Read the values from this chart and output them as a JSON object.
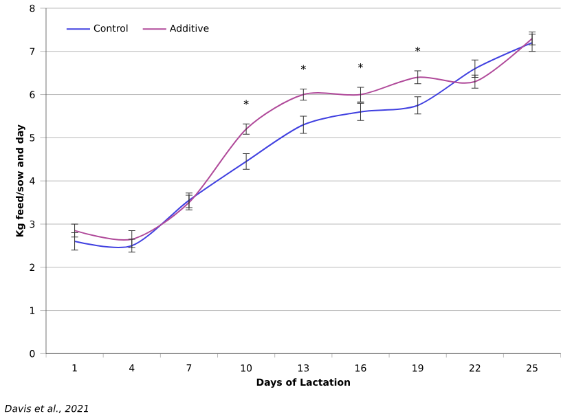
{
  "chart_data": {
    "type": "line",
    "xlabel": "Days of Lactation",
    "ylabel": "Kg feed/sow and day",
    "categories": [
      "1",
      "4",
      "7",
      "10",
      "13",
      "16",
      "19",
      "22",
      "25"
    ],
    "series": [
      {
        "name": "Control",
        "color": "#4040e0",
        "values": [
          2.6,
          2.5,
          3.55,
          4.45,
          5.3,
          5.6,
          5.75,
          6.6,
          7.2
        ],
        "errors": [
          0.2,
          0.15,
          0.17,
          0.18,
          0.2,
          0.2,
          0.2,
          0.2,
          0.2
        ]
      },
      {
        "name": "Additive",
        "color": "#b04a9a",
        "values": [
          2.85,
          2.65,
          3.5,
          5.2,
          6.0,
          6.0,
          6.4,
          6.3,
          7.3
        ],
        "errors": [
          0.15,
          0.2,
          0.17,
          0.12,
          0.13,
          0.17,
          0.15,
          0.15,
          0.15
        ]
      }
    ],
    "ylim": [
      0,
      8
    ],
    "yticks": [
      0,
      1,
      2,
      3,
      4,
      5,
      6,
      7,
      8
    ],
    "grid": "y",
    "legend": "top left",
    "line_style": "solid",
    "marker": "none",
    "annotations": [
      {
        "text": "*",
        "x": "10",
        "y": 5.2
      },
      {
        "text": "*",
        "x": "13",
        "y": 6.0
      },
      {
        "text": "*",
        "x": "16",
        "y": 6.0
      },
      {
        "text": "*",
        "x": "19",
        "y": 6.4
      },
      "Davis et al., 2021"
    ]
  }
}
